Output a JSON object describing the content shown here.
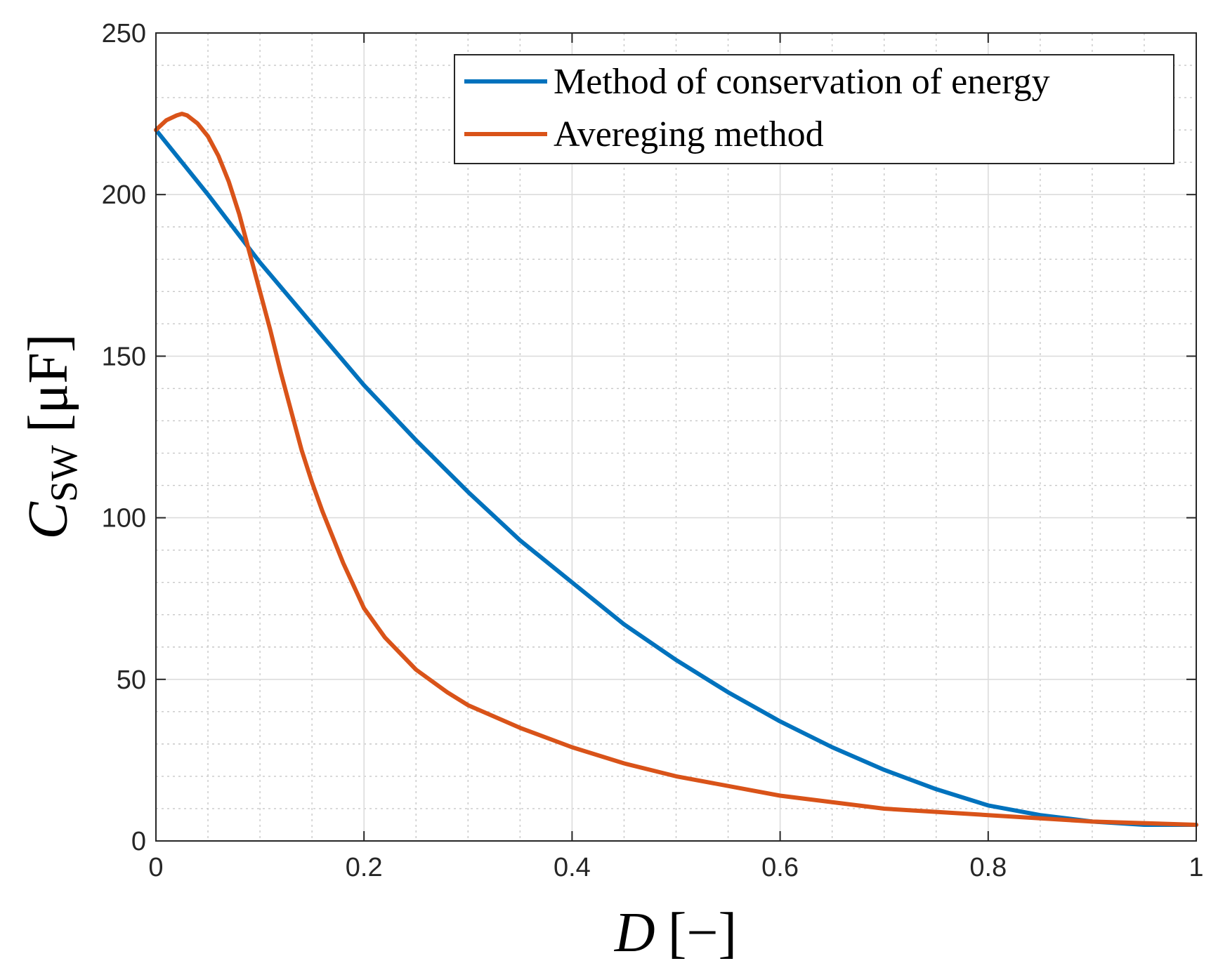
{
  "chart_data": {
    "type": "line",
    "xlabel": {
      "main": "D",
      "unit": "[−]"
    },
    "ylabel": {
      "main": "C",
      "sub": "SW",
      "unit": "[μF]"
    },
    "xlim": [
      0,
      1
    ],
    "ylim": [
      0,
      250
    ],
    "x_ticks": [
      0,
      0.2,
      0.4,
      0.6,
      0.8,
      1
    ],
    "x_tick_labels": [
      "0",
      "0.2",
      "0.4",
      "0.6",
      "0.8",
      "1"
    ],
    "y_ticks": [
      0,
      50,
      100,
      150,
      200,
      250
    ],
    "y_tick_labels": [
      "0",
      "50",
      "100",
      "150",
      "200",
      "250"
    ],
    "x_minor_step": 0.05,
    "y_minor_step": 10,
    "grid": true,
    "minor_grid": true,
    "legend_position": "top-right",
    "series": [
      {
        "name": "Method of conservation of energy",
        "color": "#0072BD",
        "x": [
          0,
          0.05,
          0.1,
          0.15,
          0.2,
          0.25,
          0.3,
          0.35,
          0.4,
          0.45,
          0.5,
          0.55,
          0.6,
          0.65,
          0.7,
          0.75,
          0.8,
          0.85,
          0.9,
          0.95,
          1.0
        ],
        "values": [
          220,
          200,
          179,
          160,
          141,
          124,
          108,
          93,
          80,
          67,
          56,
          46,
          37,
          29,
          22,
          16,
          11,
          8,
          6,
          5,
          5
        ]
      },
      {
        "name": "Avereging method",
        "color": "#D95319",
        "x": [
          0,
          0.01,
          0.02,
          0.025,
          0.03,
          0.04,
          0.05,
          0.06,
          0.07,
          0.08,
          0.09,
          0.1,
          0.11,
          0.12,
          0.13,
          0.14,
          0.15,
          0.16,
          0.18,
          0.2,
          0.22,
          0.25,
          0.28,
          0.3,
          0.35,
          0.4,
          0.45,
          0.5,
          0.6,
          0.7,
          0.8,
          0.9,
          1.0
        ],
        "values": [
          220,
          223,
          224.5,
          225,
          224.5,
          222,
          218,
          212,
          204,
          194,
          182,
          170,
          158,
          145,
          133,
          121,
          111,
          102,
          86,
          72,
          63,
          53,
          46,
          42,
          35,
          29,
          24,
          20,
          14,
          10,
          8,
          6,
          5
        ]
      }
    ]
  }
}
